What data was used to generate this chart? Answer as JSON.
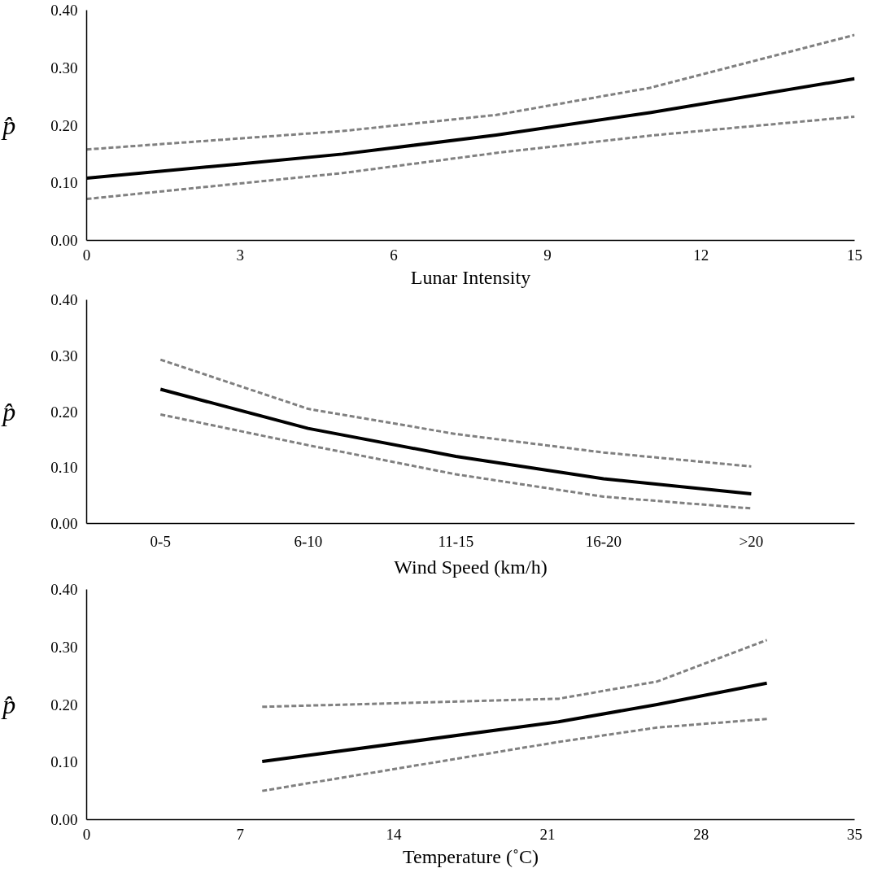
{
  "chart_data": [
    {
      "type": "line",
      "xlabel": "Lunar Intensity",
      "ylabel": "p̂",
      "xlim": [
        0,
        15
      ],
      "xticks": [
        0,
        3,
        6,
        9,
        12,
        15
      ],
      "ylim": [
        0,
        0.4
      ],
      "yticks": [
        {
          "value": 0,
          "label": "0.00"
        },
        {
          "value": 0.1,
          "label": "0.10"
        },
        {
          "value": 0.2,
          "label": "0.20"
        },
        {
          "value": 0.3,
          "label": "0.30"
        },
        {
          "value": 0.4,
          "label": "0.40"
        }
      ],
      "grid": false,
      "marker": "none",
      "series": [
        {
          "color": "#000000",
          "line_style": "solid",
          "x": [
            0,
            3,
            5,
            8,
            11,
            15
          ],
          "values": [
            0.108,
            0.133,
            0.15,
            0.183,
            0.222,
            0.281
          ]
        },
        {
          "color": "#808080",
          "line_style": "dashed",
          "x": [
            0,
            5,
            8,
            11,
            15
          ],
          "values": [
            0.158,
            0.19,
            0.218,
            0.265,
            0.357
          ]
        },
        {
          "color": "#808080",
          "line_style": "dashed",
          "x": [
            0,
            5,
            8,
            11,
            15
          ],
          "values": [
            0.072,
            0.117,
            0.152,
            0.182,
            0.215
          ]
        }
      ]
    },
    {
      "type": "line",
      "xlabel": "Wind Speed (km/h)",
      "ylabel": "p̂",
      "categories": [
        "0-5",
        "6-10",
        "11-15",
        "16-20",
        ">20"
      ],
      "ylim": [
        0,
        0.4
      ],
      "yticks": [
        {
          "value": 0,
          "label": "0.00"
        },
        {
          "value": 0.1,
          "label": "0.10"
        },
        {
          "value": 0.2,
          "label": "0.20"
        },
        {
          "value": 0.3,
          "label": "0.30"
        },
        {
          "value": 0.4,
          "label": "0.40"
        }
      ],
      "grid": false,
      "marker": "none",
      "series": [
        {
          "color": "#000000",
          "line_style": "solid",
          "values": [
            0.24,
            0.17,
            0.12,
            0.08,
            0.053
          ]
        },
        {
          "color": "#808080",
          "line_style": "dashed",
          "values": [
            0.293,
            0.205,
            0.16,
            0.127,
            0.102
          ]
        },
        {
          "color": "#808080",
          "line_style": "dashed",
          "values": [
            0.195,
            0.14,
            0.088,
            0.048,
            0.027
          ]
        }
      ]
    },
    {
      "type": "line",
      "xlabel": "Temperature (˚C)",
      "ylabel": "p̂",
      "xlim": [
        0,
        35
      ],
      "xticks": [
        0,
        7,
        14,
        21,
        28,
        35
      ],
      "ylim": [
        0,
        0.4
      ],
      "yticks": [
        {
          "value": 0,
          "label": "0.00"
        },
        {
          "value": 0.1,
          "label": "0.10"
        },
        {
          "value": 0.2,
          "label": "0.20"
        },
        {
          "value": 0.3,
          "label": "0.30"
        },
        {
          "value": 0.4,
          "label": "0.40"
        }
      ],
      "grid": false,
      "marker": "none",
      "series": [
        {
          "color": "#000000",
          "line_style": "solid",
          "x": [
            8,
            21.5,
            26,
            31
          ],
          "values": [
            0.101,
            0.17,
            0.2,
            0.237
          ]
        },
        {
          "color": "#808080",
          "line_style": "dashed",
          "x": [
            8,
            21.5,
            26,
            31
          ],
          "values": [
            0.196,
            0.21,
            0.24,
            0.312
          ]
        },
        {
          "color": "#808080",
          "line_style": "dashed",
          "x": [
            8,
            21.5,
            26,
            31
          ],
          "values": [
            0.05,
            0.135,
            0.16,
            0.175
          ]
        }
      ]
    }
  ]
}
